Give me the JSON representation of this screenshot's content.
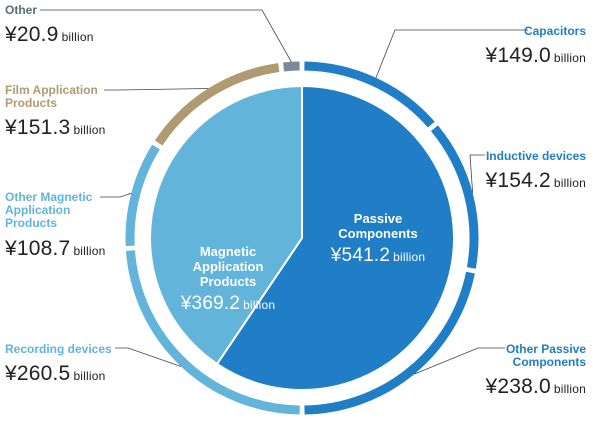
{
  "chart_data": {
    "type": "pie",
    "inner": [
      {
        "name": "Passive Components",
        "value": 541.2,
        "display": "¥541.2",
        "unit": "billion",
        "color": "#1f7ec6"
      },
      {
        "name": "Magnetic Application Products",
        "value": 369.2,
        "display": "¥369.2",
        "unit": "billion",
        "color": "#62b4da"
      }
    ],
    "outer": [
      {
        "name": "Capacitors",
        "value": 149.0,
        "display": "¥149.0",
        "unit": "billion",
        "color": "#1f7ec6",
        "label_color": "#1f7ec6"
      },
      {
        "name": "Inductive devices",
        "value": 154.2,
        "display": "¥154.2",
        "unit": "billion",
        "color": "#1f7ec6",
        "label_color": "#1f7ec6"
      },
      {
        "name": "Other Passive Components",
        "value": 238.0,
        "display": "¥238.0",
        "unit": "billion",
        "color": "#1f7ec6",
        "label_color": "#1f7ec6"
      },
      {
        "name": "Recording devices",
        "value": 260.5,
        "display": "¥260.5",
        "unit": "billion",
        "color": "#62b4da",
        "label_color": "#62b4da"
      },
      {
        "name": "Other Magnetic Application Products",
        "value": 108.7,
        "display": "¥108.7",
        "unit": "billion",
        "color": "#62b4da",
        "label_color": "#62b4da"
      },
      {
        "name": "Film Application Products",
        "value": 151.3,
        "display": "¥151.3",
        "unit": "billion",
        "color": "#b09a72",
        "label_color": "#b09a72"
      },
      {
        "name": "Other",
        "value": 20.9,
        "display": "¥20.9",
        "unit": "billion",
        "color": "#7a8a99",
        "label_color": "#5a6b7a"
      }
    ],
    "line_color": "#444444"
  }
}
